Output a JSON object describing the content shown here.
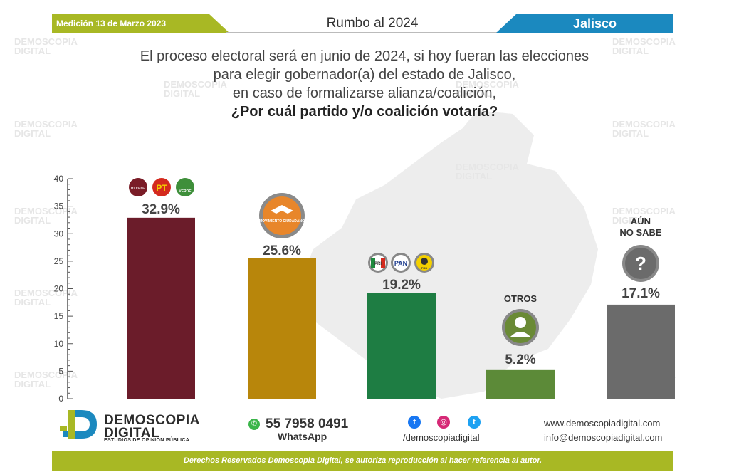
{
  "header": {
    "left_label": "Medición 13 de Marzo 2023",
    "center_title": "Rumbo al 2024",
    "right_label": "Jalisco"
  },
  "question": {
    "line1": "El proceso electoral será en junio de 2024, si hoy fueran las elecciones",
    "line2": "para elegir gobernador(a) del estado de Jalisco,",
    "line3": "en caso de formalizarse alianza/coalición,",
    "line4": "¿Por cuál partido y/o coalición votaría?"
  },
  "chart_data": {
    "type": "bar",
    "categories": [
      "Morena-PT-Verde",
      "Movimiento Ciudadano",
      "PRI-PAN-PRD",
      "OTROS",
      "AÚN NO SABE"
    ],
    "values": [
      32.9,
      25.6,
      19.2,
      5.2,
      17.1
    ],
    "value_labels": [
      "32.9%",
      "25.6%",
      "19.2%",
      "5.2%",
      "17.1%"
    ],
    "category_labels": [
      "",
      "",
      "",
      "OTROS",
      "AÚN NO SABE"
    ],
    "bar_colors": [
      "#6b1c2a",
      "#b8860b",
      "#1e7d43",
      "#5c8a38",
      "#6b6b6b"
    ],
    "ylim": [
      0,
      40
    ],
    "yticks": [
      0,
      5,
      10,
      15,
      20,
      25,
      30,
      35,
      40
    ],
    "ytick_labels": [
      "0",
      "5",
      "10",
      "15",
      "20",
      "25",
      "30",
      "35",
      "40"
    ],
    "grid": false
  },
  "logos": {
    "morena": "morena",
    "pt": "PT",
    "verde": "VERDE",
    "mc": "MOVIMIENTO CIUDADANO",
    "pri": "PRI",
    "pan": "PAN",
    "prd": "PRD",
    "question_mark": "?"
  },
  "watermark": {
    "line1": "DEMOSCOPIA",
    "line2": "DIGITAL"
  },
  "footer": {
    "brand_line1": "DEMOSCOPIA",
    "brand_line2": "DIGITAL",
    "brand_line3": "ESTUDIOS DE OPINIÓN PÚBLICA",
    "phone": "55 7958 0491",
    "whatsapp": "WhatsApp",
    "handle": "/demoscopiadigital",
    "website": "www.demoscopiadigital.com",
    "email": "info@demoscopiadigital.com",
    "rights": "Derechos Reservados Demoscopia Digital, se autoriza reproducción al hacer referencia al autor."
  },
  "colors": {
    "green_accent": "#a8b824",
    "blue_accent": "#1b89bf",
    "facebook": "#1877f2",
    "instagram": "#d62976",
    "twitter": "#1da1f2"
  }
}
